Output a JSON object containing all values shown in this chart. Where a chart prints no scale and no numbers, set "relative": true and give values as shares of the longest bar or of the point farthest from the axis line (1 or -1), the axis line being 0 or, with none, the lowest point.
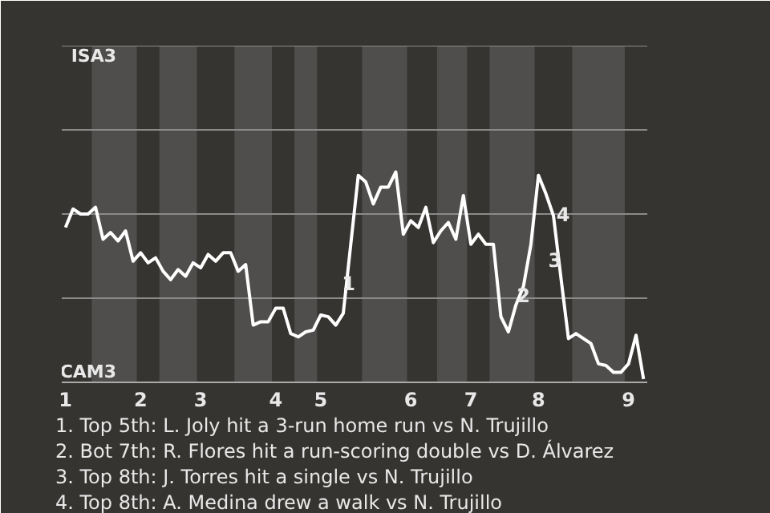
{
  "chart_data": {
    "type": "line",
    "relative": true,
    "categories": [
      "1",
      null,
      null,
      null,
      null,
      null,
      null,
      null,
      null,
      null,
      "2",
      null,
      null,
      null,
      null,
      null,
      null,
      null,
      "3",
      null,
      null,
      null,
      null,
      null,
      null,
      null,
      null,
      null,
      "4",
      null,
      null,
      null,
      null,
      null,
      "5",
      null,
      null,
      null,
      null,
      null,
      null,
      null,
      null,
      null,
      null,
      null,
      "6",
      null,
      null,
      null,
      null,
      null,
      null,
      null,
      "7",
      null,
      null,
      null,
      null,
      null,
      null,
      null,
      null,
      "8",
      null,
      null,
      null,
      null,
      null,
      null,
      null,
      null,
      null,
      null,
      null,
      "9",
      null,
      null
    ],
    "grid": false,
    "marker": "none",
    "line_style": "solid",
    "series": [
      {
        "color": "#ffffff",
        "values": [
          0.736,
          0.824,
          0.8,
          0.8,
          0.832,
          0.68,
          0.712,
          0.672,
          0.72,
          0.576,
          0.616,
          0.568,
          0.592,
          0.528,
          0.488,
          0.536,
          0.504,
          0.568,
          0.544,
          0.608,
          0.576,
          0.616,
          0.616,
          0.528,
          0.56,
          0.272,
          0.288,
          0.288,
          0.352,
          0.352,
          0.232,
          0.216,
          0.24,
          0.248,
          0.32,
          0.312,
          0.272,
          0.328,
          0.656,
          0.984,
          0.952,
          0.848,
          0.928,
          0.928,
          1,
          0.704,
          0.768,
          0.736,
          0.832,
          0.664,
          0.72,
          0.76,
          0.68,
          0.888,
          0.656,
          0.704,
          0.656,
          0.656,
          0.312,
          0.24,
          0.368,
          0.456,
          0.656,
          0.984,
          0.896,
          0.792,
          0.496,
          0.208,
          0.232,
          0.208,
          0.184,
          0.088,
          0.08,
          0.048,
          0.048,
          0.088,
          0.224,
          0.016
        ]
      }
    ],
    "ref_lines": [
      {
        "axis": "y",
        "value": 0.4,
        "color": "#8a8a8a"
      },
      {
        "axis": "y",
        "value": 0.8,
        "color": "#8a8a8a"
      },
      {
        "axis": "y",
        "value": 1.2,
        "color": "#8a8a8a"
      },
      {
        "axis": "y",
        "value": 1.6,
        "color": "#8a8a8a"
      }
    ],
    "annotations": [
      "ISA3",
      "CAM3",
      {
        "text": "1",
        "y": 0.472
      },
      {
        "text": "2",
        "y": 0.416
      },
      {
        "text": "3",
        "y": 0.584
      },
      {
        "text": "4",
        "y": 0.8
      },
      "1. Top 5th: L. Joly hit a 3-run home run vs N. Trujillo",
      "2. Bot 7th: R. Flores hit a run-scoring double vs D. Álvarez",
      "3. Top 8th: J. Torres hit a single vs N. Trujillo",
      "4. Top 8th: A. Medina drew a walk vs N. Trujillo"
    ]
  }
}
